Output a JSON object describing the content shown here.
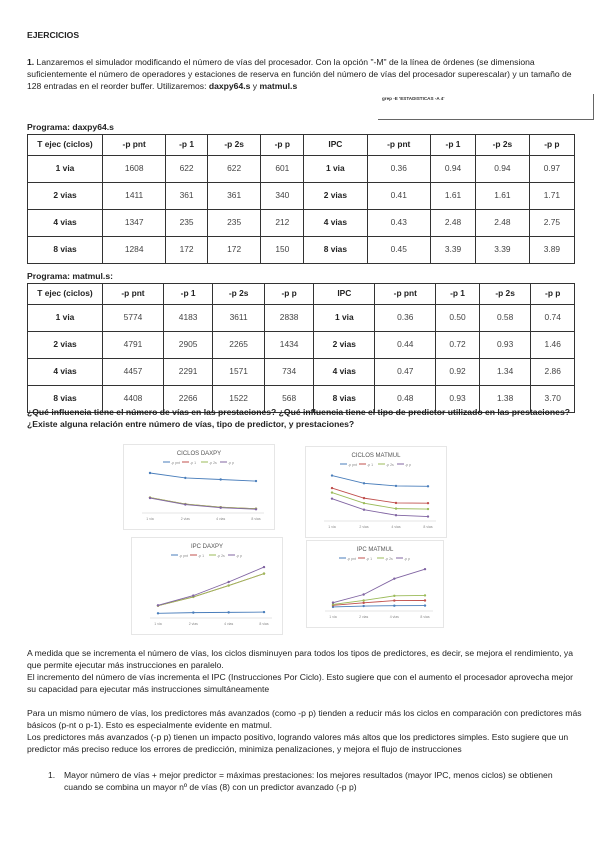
{
  "heading": "EJERCICIOS",
  "intro": {
    "number": "1.",
    "text": " Lanzaremos el simulador modificando el número de vías del procesador. Con la opción \"-M\" de la línea de órdenes (se dimensiona suficientemente el número de operadores y estaciones de reserva en función del número de vías del procesador superescalar) y un tamaño de 128 entradas en el reorder buffer. Utilizaremos: ",
    "file1": "daxpy64.s",
    "conj": " y ",
    "file2": "matmul.s"
  },
  "note": "grep -E 'ESTADISTICAS -A 4'",
  "tables": [
    {
      "title": "Programa: daxpy64.s",
      "header": [
        "T ejec (ciclos)",
        "-p pnt",
        "-p 1",
        "-p 2s",
        "-p p",
        "IPC",
        "-p pnt",
        "-p 1",
        "-p 2s",
        "-p p"
      ],
      "rows": [
        [
          "1 via",
          "1608",
          "622",
          "622",
          "601",
          "1 via",
          "0.36",
          "0.94",
          "0.94",
          "0.97"
        ],
        [
          "2 vias",
          "1411",
          "361",
          "361",
          "340",
          "2 vias",
          "0.41",
          "1.61",
          "1.61",
          "1.71"
        ],
        [
          "4 vias",
          "1347",
          "235",
          "235",
          "212",
          "4 vias",
          "0.43",
          "2.48",
          "2.48",
          "2.75"
        ],
        [
          "8 vias",
          "1284",
          "172",
          "172",
          "150",
          "8 vias",
          "0.45",
          "3.39",
          "3.39",
          "3.89"
        ]
      ]
    },
    {
      "title": "Programa: matmul.s:",
      "header": [
        "T ejec (ciclos)",
        "-p pnt",
        "-p 1",
        "-p 2s",
        "-p p",
        "IPC",
        "-p pnt",
        "-p 1",
        "-p 2s",
        "-p p"
      ],
      "rows": [
        [
          "1 via",
          "5774",
          "4183",
          "3611",
          "2838",
          "1 via",
          "0.36",
          "0.50",
          "0.58",
          "0.74"
        ],
        [
          "2 vias",
          "4791",
          "2905",
          "2265",
          "1434",
          "2 vias",
          "0.44",
          "0.72",
          "0.93",
          "1.46"
        ],
        [
          "4 vias",
          "4457",
          "2291",
          "1571",
          "734",
          "4 vias",
          "0.47",
          "0.92",
          "1.34",
          "2.86"
        ],
        [
          "8 vias",
          "4408",
          "2266",
          "1522",
          "568",
          "8 vias",
          "0.48",
          "0.93",
          "1.38",
          "3.70"
        ]
      ]
    }
  ],
  "question": "¿Qué influencia tiene el número de vías en las prestaciones? ¿Qué influencia tiene el tipo de predictor utilizado en las prestaciones? ¿Existe alguna relación entre número de vías, tipo de predictor, y prestaciones?",
  "charts": [
    {
      "title": "CICLOS DAXPY",
      "type": "line",
      "categories": [
        "1 via",
        "2 vias",
        "4 vias",
        "8 vias"
      ],
      "series": [
        {
          "name": "-p pnt",
          "values": [
            1608,
            1411,
            1347,
            1284
          ]
        },
        {
          "name": "-p 1",
          "values": [
            622,
            361,
            235,
            172
          ]
        },
        {
          "name": "-p 2s",
          "values": [
            622,
            361,
            235,
            172
          ]
        },
        {
          "name": "-p p",
          "values": [
            601,
            340,
            212,
            150
          ]
        }
      ]
    },
    {
      "title": "CICLOS MATMUL",
      "type": "line",
      "categories": [
        "1 via",
        "2 vias",
        "4 vias",
        "8 vias"
      ],
      "series": [
        {
          "name": "-p pnt",
          "values": [
            5774,
            4791,
            4457,
            4408
          ]
        },
        {
          "name": "-p 1",
          "values": [
            4183,
            2905,
            2291,
            2266
          ]
        },
        {
          "name": "-p 2s",
          "values": [
            3611,
            2265,
            1571,
            1522
          ]
        },
        {
          "name": "-p p",
          "values": [
            2838,
            1434,
            734,
            568
          ]
        }
      ]
    },
    {
      "title": "IPC DAXPY",
      "type": "line",
      "categories": [
        "1 via",
        "2 vias",
        "4 vias",
        "8 vias"
      ],
      "series": [
        {
          "name": "-p pnt",
          "values": [
            0.36,
            0.41,
            0.43,
            0.45
          ]
        },
        {
          "name": "-p 1",
          "values": [
            0.94,
            1.61,
            2.48,
            3.39
          ]
        },
        {
          "name": "-p 2s",
          "values": [
            0.94,
            1.61,
            2.48,
            3.39
          ]
        },
        {
          "name": "-p p",
          "values": [
            0.97,
            1.71,
            2.75,
            3.89
          ]
        }
      ]
    },
    {
      "title": "IPC MATMUL",
      "type": "line",
      "categories": [
        "1 via",
        "2 vias",
        "4 vias",
        "8 vias"
      ],
      "series": [
        {
          "name": "-p pnt",
          "values": [
            0.36,
            0.44,
            0.47,
            0.48
          ]
        },
        {
          "name": "-p 1",
          "values": [
            0.5,
            0.72,
            0.92,
            0.93
          ]
        },
        {
          "name": "-p 2s",
          "values": [
            0.58,
            0.93,
            1.34,
            1.38
          ]
        },
        {
          "name": "-p p",
          "values": [
            0.74,
            1.46,
            2.86,
            3.7
          ]
        }
      ]
    }
  ],
  "colors": {
    "-p pnt": "#4a7ebb",
    "-p 1": "#c0504d",
    "-p 2s": "#9bbb59",
    "-p p": "#8064a2"
  },
  "answer": {
    "p1": "A medida que se incrementa el número de vías, los ciclos disminuyen para todos los tipos de predictores, es decir, se mejora el rendimiento, ya que permite ejecutar más instrucciones en paralelo.",
    "p2": "El incremento del número de vías incrementa el IPC (Instrucciones Por Ciclo). Esto sugiere que con el aumento el procesador aprovecha mejor su capacidad para ejecutar más instrucciones simultáneamente",
    "p3": "Para un mismo número de vías, los predictores más avanzados (como -p p) tienden a reducir más los ciclos en comparación con predictores más básicos (p-nt o p-1). Esto es especialmente evidente en matmul.",
    "p4": "Los predictores más avanzados (-p p) tienen un impacto positivo, logrando valores más altos que los predictores simples. Esto sugiere que un predictor más preciso reduce los errores de predicción, minimiza penalizaciones, y mejora el flujo de instrucciones",
    "list_num": "1.",
    "list_item": "Mayor número de vías + mejor predictor = máximas prestaciones: los mejores resultados (mayor IPC, menos ciclos) se obtienen cuando se combina un mayor nº de vías (8) con un predictor avanzado (-p p)"
  }
}
